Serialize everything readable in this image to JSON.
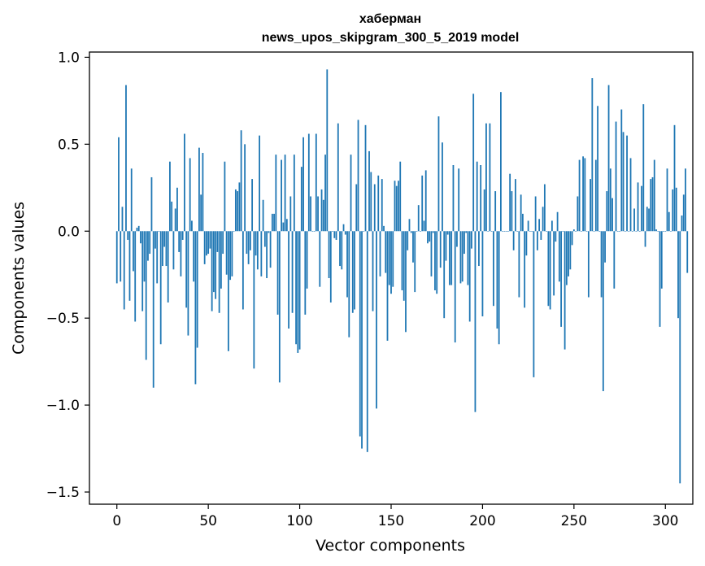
{
  "chart_data": {
    "type": "bar",
    "title_line1": "хаберман",
    "title_line2": "news_upos_skipgram_300_5_2019 model",
    "xlabel": "Vector components",
    "ylabel": "Components values",
    "xlim": [
      -15,
      315
    ],
    "ylim": [
      -1.57,
      1.03
    ],
    "x_ticks": [
      0,
      50,
      100,
      150,
      200,
      250,
      300
    ],
    "y_ticks": [
      1.0,
      0.5,
      0.0,
      -0.5,
      -1.0,
      -1.5
    ],
    "x_tick_labels": [
      "0",
      "50",
      "100",
      "150",
      "200",
      "250",
      "300"
    ],
    "y_tick_labels": [
      "1.0",
      "0.5",
      "0.0",
      "−0.5",
      "−1.0",
      "−1.5"
    ],
    "bar_color": "#1f77b4",
    "grid": false,
    "values": [
      -0.3,
      0.54,
      -0.29,
      0.14,
      -0.45,
      0.84,
      -0.05,
      -0.4,
      0.36,
      -0.23,
      -0.52,
      0.02,
      0.03,
      -0.07,
      -0.46,
      -0.29,
      -0.74,
      -0.17,
      -0.13,
      0.31,
      -0.9,
      -0.1,
      -0.3,
      0.0,
      -0.65,
      -0.2,
      -0.09,
      -0.2,
      -0.41,
      0.4,
      0.17,
      -0.22,
      0.13,
      0.25,
      -0.12,
      -0.26,
      -0.05,
      0.56,
      -0.44,
      -0.6,
      0.42,
      0.06,
      -0.29,
      -0.88,
      -0.67,
      0.48,
      0.21,
      0.45,
      -0.19,
      -0.14,
      -0.13,
      -0.1,
      -0.46,
      -0.35,
      -0.39,
      -0.12,
      -0.47,
      -0.33,
      -0.13,
      0.4,
      -0.25,
      -0.69,
      -0.28,
      -0.26,
      0.0,
      0.24,
      0.23,
      0.28,
      0.58,
      -0.45,
      0.5,
      -0.13,
      -0.19,
      -0.11,
      0.3,
      -0.79,
      -0.14,
      -0.22,
      0.55,
      -0.26,
      0.18,
      -0.09,
      -0.27,
      -0.01,
      -0.21,
      0.1,
      0.1,
      0.44,
      -0.48,
      -0.87,
      0.41,
      0.05,
      0.44,
      0.07,
      -0.56,
      0.2,
      -0.47,
      0.44,
      -0.65,
      -0.7,
      -0.68,
      0.37,
      0.54,
      -0.48,
      -0.33,
      0.56,
      0.2,
      0.0,
      0.0,
      0.56,
      0.2,
      -0.32,
      0.24,
      0.18,
      0.44,
      0.93,
      -0.27,
      -0.41,
      0.0,
      -0.04,
      -0.05,
      0.62,
      -0.2,
      -0.22,
      0.04,
      -0.02,
      -0.38,
      -0.61,
      0.44,
      -0.47,
      -0.45,
      0.27,
      0.64,
      -1.18,
      -1.25,
      0.0,
      0.61,
      -1.27,
      0.46,
      0.34,
      -0.46,
      0.27,
      -1.02,
      0.32,
      -0.26,
      0.3,
      0.03,
      -0.24,
      -0.63,
      -0.31,
      -0.36,
      -0.32,
      0.29,
      0.26,
      0.29,
      0.4,
      -0.34,
      -0.4,
      -0.58,
      -0.11,
      0.07,
      -0.01,
      -0.18,
      -0.35,
      0.0,
      0.15,
      0.0,
      0.32,
      0.06,
      0.35,
      -0.07,
      -0.06,
      -0.26,
      -0.01,
      -0.34,
      -0.36,
      0.66,
      -0.21,
      0.51,
      -0.5,
      -0.17,
      -0.02,
      -0.31,
      -0.31,
      0.38,
      -0.64,
      -0.09,
      0.36,
      -0.3,
      -0.29,
      -0.13,
      -0.01,
      -0.31,
      -0.52,
      -0.1,
      0.79,
      -1.04,
      0.4,
      -0.2,
      0.38,
      -0.49,
      0.24,
      0.62,
      0.0,
      0.62,
      0.0,
      -0.43,
      0.23,
      -0.56,
      -0.65,
      0.8,
      0.0,
      0.0,
      0.0,
      0.0,
      0.33,
      0.23,
      -0.11,
      0.3,
      0.0,
      -0.38,
      0.21,
      0.1,
      -0.44,
      -0.14,
      0.06,
      0.0,
      0.0,
      -0.84,
      0.2,
      -0.11,
      0.07,
      -0.05,
      0.14,
      0.27,
      0.0,
      -0.43,
      -0.45,
      0.06,
      -0.37,
      -0.06,
      0.11,
      -0.29,
      -0.55,
      0.0,
      -0.68,
      -0.31,
      -0.26,
      -0.22,
      -0.08,
      0.01,
      0.0,
      0.2,
      0.41,
      0.0,
      0.43,
      0.42,
      0.0,
      -0.38,
      0.3,
      0.88,
      0.0,
      0.41,
      0.72,
      0.0,
      -0.38,
      -0.92,
      -0.18,
      0.23,
      0.84,
      0.36,
      0.19,
      -0.33,
      0.63,
      0.0,
      0.0,
      0.7,
      0.57,
      0.0,
      0.55,
      0.0,
      0.42,
      0.0,
      0.13,
      0.0,
      0.28,
      0.0,
      0.26,
      0.73,
      -0.09,
      0.14,
      0.13,
      0.3,
      0.31,
      0.41,
      0.01,
      0.0,
      -0.55,
      -0.33,
      0.0,
      0.0,
      0.36,
      0.11,
      0.0,
      0.24,
      0.61,
      0.25,
      -0.5,
      -1.45,
      0.09,
      0.21,
      0.36,
      -0.24
    ]
  }
}
